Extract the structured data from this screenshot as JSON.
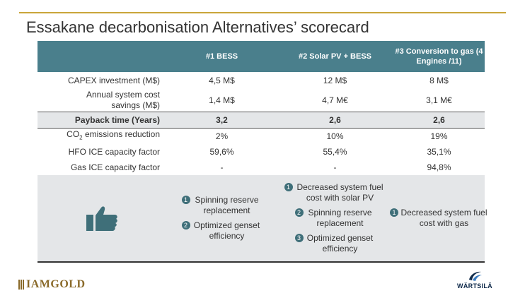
{
  "title": "Essakane decarbonisation Alternatives’ scorecard",
  "table": {
    "headers": [
      "#1 BESS",
      "#2 Solar PV + BESS",
      "#3 Conversion to gas (4 Engines /11)"
    ],
    "rows": [
      {
        "label": "CAPEX investment (M$)",
        "values": [
          "4,5 M$",
          "12 M$",
          "8 M$"
        ]
      },
      {
        "label": "Annual system cost savings (M$)",
        "values": [
          "1,4 M$",
          "4,7 M€",
          "3,1 M€"
        ]
      },
      {
        "label": "Payback time (Years)",
        "values": [
          "3,2",
          "2,6",
          "2,6"
        ]
      },
      {
        "label_pre": "CO",
        "label_sub": "2",
        "label_post": " emissions reduction",
        "values": [
          "2%",
          "10%",
          "19%"
        ]
      },
      {
        "label": "HFO ICE capacity factor",
        "values": [
          "59,6%",
          "55,4%",
          "35,1%"
        ]
      },
      {
        "label": "Gas ICE capacity factor",
        "values": [
          "-",
          "-",
          "94,8%"
        ]
      }
    ]
  },
  "pros": {
    "icon": "thumbs-up-icon",
    "col1": [
      {
        "n": "1",
        "text": "Spinning reserve replacement"
      },
      {
        "n": "2",
        "text": "Optimized genset efficiency"
      }
    ],
    "col2": [
      {
        "n": "1",
        "text": "Decreased system fuel cost with solar PV"
      },
      {
        "n": "2",
        "text": "Spinning reserve replacement"
      },
      {
        "n": "3",
        "text": "Optimized genset efficiency"
      }
    ],
    "col3": [
      {
        "n": "1",
        "text": "Decreased system fuel cost with gas"
      }
    ]
  },
  "logos": {
    "left": "IAMGOLD",
    "right": "WÄRTSILÄ"
  },
  "colors": {
    "header_bg": "#4a7f8c",
    "accent_rule": "#c9a53a",
    "band_bg": "#e4e6e8"
  }
}
